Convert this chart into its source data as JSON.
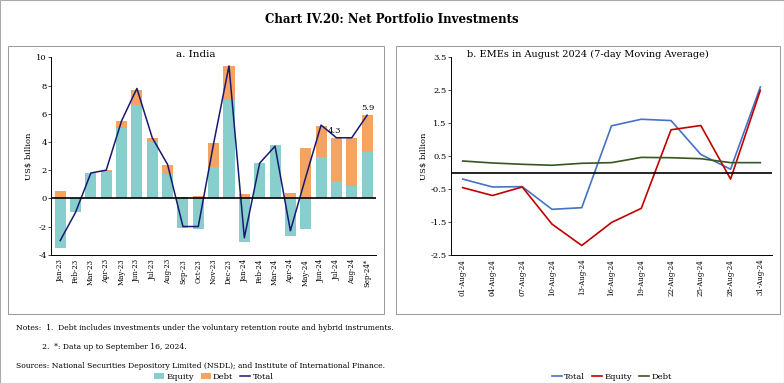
{
  "title": "Chart IV.20: Net Portfolio Investments",
  "panel_a_title": "a. India",
  "panel_b_title": "b. EMEs in August 2024 (7-day Moving Average)",
  "india_categories": [
    "Jan-23",
    "Feb-23",
    "Mar-23",
    "Apr-23",
    "May-23",
    "Jun-23",
    "Jul-23",
    "Aug-23",
    "Sep-23",
    "Oct-23",
    "Nov-23",
    "Dec-23",
    "Jan-24",
    "Feb-24",
    "Mar-24",
    "Apr-24",
    "May-24",
    "Jun-24",
    "Jul-24",
    "Aug-24",
    "Sep-24*"
  ],
  "india_equity": [
    -3.5,
    -1.0,
    1.8,
    1.9,
    5.0,
    6.6,
    4.0,
    1.7,
    -2.1,
    -2.2,
    2.2,
    7.0,
    -3.1,
    2.5,
    3.8,
    -2.7,
    -2.2,
    2.9,
    1.2,
    0.9,
    3.3
  ],
  "india_debt": [
    0.5,
    0.0,
    0.0,
    0.1,
    0.5,
    1.1,
    0.3,
    0.7,
    0.1,
    0.2,
    1.7,
    2.4,
    0.3,
    0.0,
    0.0,
    0.4,
    3.6,
    2.2,
    3.1,
    3.4,
    2.6
  ],
  "india_total": [
    -3.0,
    -1.0,
    1.8,
    2.0,
    5.5,
    7.8,
    4.3,
    2.4,
    -2.0,
    -2.0,
    3.9,
    9.4,
    -2.8,
    2.5,
    3.7,
    -2.3,
    1.5,
    5.2,
    4.3,
    4.3,
    5.9
  ],
  "india_ylim": [
    -4,
    10
  ],
  "india_yticks": [
    -4,
    -2,
    0,
    2,
    4,
    6,
    8,
    10
  ],
  "india_ylabel": "US$ billion",
  "india_equity_color": "#87cecc",
  "india_debt_color": "#f4a460",
  "india_total_color": "#191970",
  "emes_dates": [
    "01-Aug-24",
    "04-Aug-24",
    "07-Aug-24",
    "10-Aug-24",
    "13-Aug-24",
    "16-Aug-24",
    "19-Aug-24",
    "22-Aug-24",
    "25-Aug-24",
    "28-Aug-24",
    "31-Aug-24"
  ],
  "emes_total": [
    -0.2,
    -0.44,
    -0.43,
    -1.12,
    -1.07,
    1.42,
    1.62,
    1.58,
    0.55,
    0.1,
    2.6
  ],
  "emes_equity": [
    -0.46,
    -0.7,
    -0.44,
    -1.57,
    -2.22,
    -1.52,
    -1.09,
    1.3,
    1.43,
    -0.2,
    2.5
  ],
  "emes_debt": [
    0.35,
    0.29,
    0.25,
    0.22,
    0.28,
    0.3,
    0.46,
    0.45,
    0.42,
    0.3,
    0.3
  ],
  "emes_ylim": [
    -2.5,
    3.5
  ],
  "emes_yticks": [
    -2.5,
    -1.5,
    -0.5,
    0.5,
    1.5,
    2.5,
    3.5
  ],
  "emes_ylabel": "US$ billion",
  "emes_total_color": "#4472c4",
  "emes_equity_color": "#c00000",
  "emes_debt_color": "#375623",
  "note1": "Notes:  1.  Debt includes investments under the voluntary retention route and hybrid instruments.",
  "note2": "           2.  *: Data up to September 16, 2024.",
  "source": "Sources: National Securities Depository Limited (NSDL); and Institute of International Finance.",
  "background_color": "#ffffff"
}
